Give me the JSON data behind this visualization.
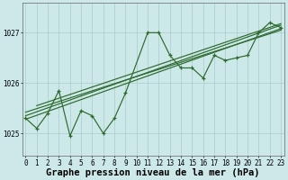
{
  "xlabel": "Graphe pression niveau de la mer (hPa)",
  "x": [
    0,
    1,
    2,
    3,
    4,
    5,
    6,
    7,
    8,
    9,
    10,
    11,
    12,
    13,
    14,
    15,
    16,
    17,
    18,
    19,
    20,
    21,
    22,
    23
  ],
  "jagged_x": [
    0,
    1,
    2,
    3,
    4,
    5,
    6,
    7,
    8,
    9,
    11,
    12,
    13,
    14,
    15,
    16,
    17,
    18,
    19,
    20,
    21,
    22,
    23
  ],
  "jagged_y": [
    1025.3,
    1025.1,
    1025.4,
    1025.85,
    1024.95,
    1025.45,
    1025.35,
    1025.0,
    1025.3,
    1025.8,
    1027.0,
    1027.0,
    1026.55,
    1026.3,
    1026.3,
    1026.1,
    1026.55,
    1026.45,
    1026.5,
    1026.55,
    1027.0,
    1027.2,
    1027.1
  ],
  "trend1_x": [
    0,
    23
  ],
  "trend1_y": [
    1025.28,
    1027.08
  ],
  "trend2_x": [
    0,
    23
  ],
  "trend2_y": [
    1025.35,
    1027.15
  ],
  "trend3_x": [
    1,
    23
  ],
  "trend3_y": [
    1025.55,
    1027.18
  ],
  "trend4_x": [
    0,
    23
  ],
  "trend4_y": [
    1025.42,
    1027.05
  ],
  "yticks": [
    1025,
    1026,
    1027
  ],
  "ylim": [
    1024.55,
    1027.6
  ],
  "xlim": [
    -0.3,
    23.3
  ],
  "bg_color": "#cce8e8",
  "grid_color": "#aacccc",
  "line_color": "#2d6a2d",
  "tick_fontsize": 5.5,
  "xlabel_fontsize": 7.5
}
